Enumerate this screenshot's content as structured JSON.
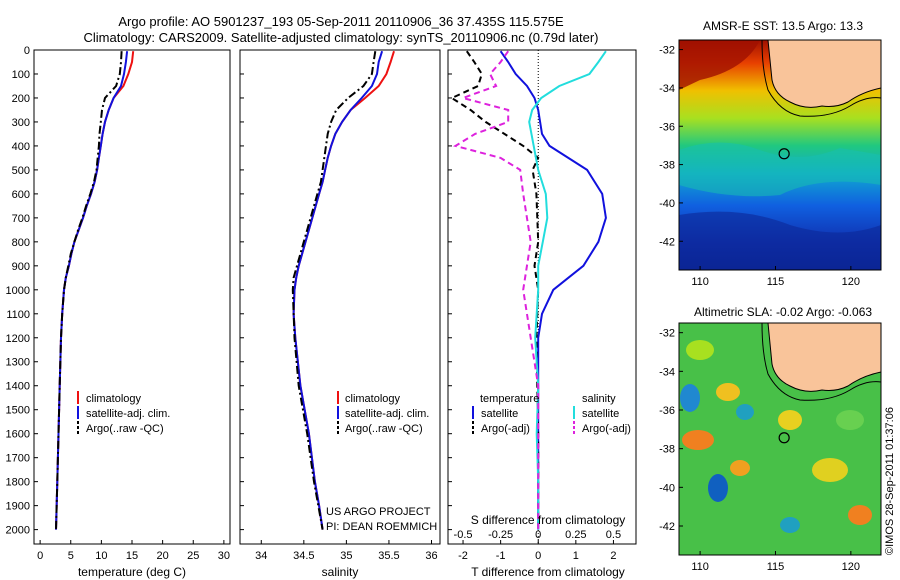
{
  "header": {
    "line1": "Argo profile: AO 5901237_193 05-Sep-2011 20110906_36 37.435S 115.575E",
    "line2": "Climatology: CARS2009. Satellite-adjusted climatology: synTS_20110906.nc (0.79d later)"
  },
  "credit": "©IMOS 28-Sep-2011 01:37:06",
  "project": {
    "line1": "US ARGO PROJECT",
    "line2": "PI: DEAN ROEMMICH"
  },
  "colors": {
    "climatology": "#ee1111",
    "satellite": "#1111dd",
    "argo": "#000000",
    "sat_salinity": "#22dddd",
    "argo_salinity": "#dd22dd",
    "land": "#f9c49a"
  },
  "chart_data": [
    {
      "type": "line",
      "ylim": [
        2060,
        0
      ],
      "yticks": [
        "0",
        "100",
        "200",
        "300",
        "400",
        "500",
        "600",
        "700",
        "800",
        "900",
        "1000",
        "1100",
        "1200",
        "1300",
        "1400",
        "1500",
        "1600",
        "1700",
        "1800",
        "1900",
        "2000"
      ],
      "xlim": [
        -1,
        31
      ],
      "xticks": [
        "0",
        "5",
        "10",
        "15",
        "20",
        "25",
        "30"
      ],
      "xlabel": "temperature (deg C)",
      "legend": [
        "climatology",
        "satellite-adj. clim.",
        "Argo(..raw -QC)"
      ],
      "series": [
        {
          "name": "climatology",
          "style": "solid",
          "color": "#ee1111",
          "x": [
            15.2,
            15.0,
            14.4,
            13.6,
            12.0,
            11.2,
            10.6,
            10.2,
            9.9,
            9.6,
            9.3,
            8.9,
            8.3,
            7.6,
            7.0,
            6.3,
            5.6,
            5.1,
            4.7,
            4.2,
            3.9,
            3.6,
            3.4,
            3.2,
            3.0,
            2.8,
            2.6
          ],
          "y": [
            5,
            50,
            100,
            150,
            200,
            250,
            300,
            350,
            400,
            450,
            500,
            550,
            600,
            650,
            700,
            750,
            800,
            850,
            900,
            950,
            1000,
            1100,
            1200,
            1400,
            1600,
            1800,
            2000
          ]
        },
        {
          "name": "satellite-adj. clim.",
          "style": "solid",
          "color": "#1111dd",
          "x": [
            14.2,
            14.0,
            13.7,
            13.2,
            12.0,
            11.2,
            10.6,
            10.2,
            9.9,
            9.6,
            9.3,
            8.9,
            8.3,
            7.6,
            7.0,
            6.3,
            5.6,
            5.1,
            4.7,
            4.2,
            3.9,
            3.6,
            3.4,
            3.2,
            3.0,
            2.8,
            2.6
          ],
          "y": [
            5,
            50,
            100,
            150,
            200,
            250,
            300,
            350,
            400,
            450,
            500,
            550,
            600,
            650,
            700,
            750,
            800,
            850,
            900,
            950,
            1000,
            1100,
            1200,
            1400,
            1600,
            1800,
            2000
          ]
        },
        {
          "name": "Argo(..raw -QC)",
          "style": "dashdot",
          "color": "#000000",
          "x": [
            13.3,
            13.2,
            13.0,
            12.4,
            10.6,
            10.1,
            9.9,
            9.7,
            9.6,
            9.4,
            9.2,
            8.8,
            8.2,
            7.5,
            6.9,
            6.2,
            5.6,
            5.0,
            4.6,
            4.2,
            3.9,
            3.6,
            3.4,
            3.2,
            3.0,
            2.8,
            2.6
          ],
          "y": [
            5,
            50,
            100,
            150,
            200,
            250,
            300,
            350,
            400,
            450,
            500,
            550,
            600,
            650,
            700,
            750,
            800,
            850,
            900,
            950,
            1000,
            1100,
            1200,
            1400,
            1600,
            1800,
            2000
          ]
        }
      ]
    },
    {
      "type": "line",
      "ylim": [
        2060,
        0
      ],
      "xlim": [
        33.75,
        36.1
      ],
      "xticks": [
        "34",
        "34.5",
        "35",
        "35.5",
        "36"
      ],
      "xlabel": "salinity",
      "legend": [
        "climatology",
        "satellite-adj. clim.",
        "Argo(..raw -QC)"
      ],
      "series": [
        {
          "name": "climatology",
          "style": "solid",
          "color": "#ee1111",
          "x": [
            35.56,
            35.52,
            35.47,
            35.38,
            35.22,
            35.05,
            34.95,
            34.87,
            34.82,
            34.78,
            34.75,
            34.72,
            34.68,
            34.64,
            34.6,
            34.56,
            34.52,
            34.48,
            34.44,
            34.41,
            34.39,
            34.38,
            34.4,
            34.46,
            34.56,
            34.63,
            34.68,
            34.72
          ],
          "y": [
            5,
            50,
            100,
            150,
            200,
            250,
            300,
            350,
            400,
            450,
            500,
            550,
            600,
            650,
            700,
            750,
            800,
            850,
            900,
            950,
            1000,
            1100,
            1200,
            1400,
            1600,
            1800,
            1900,
            2000
          ]
        },
        {
          "name": "satellite-adj. clim.",
          "style": "solid",
          "color": "#1111dd",
          "x": [
            35.42,
            35.38,
            35.36,
            35.3,
            35.18,
            35.05,
            34.95,
            34.87,
            34.82,
            34.78,
            34.75,
            34.72,
            34.68,
            34.64,
            34.6,
            34.56,
            34.52,
            34.48,
            34.44,
            34.41,
            34.39,
            34.38,
            34.4,
            34.46,
            34.56,
            34.63,
            34.68,
            34.72
          ],
          "y": [
            5,
            50,
            100,
            150,
            200,
            250,
            300,
            350,
            400,
            450,
            500,
            550,
            600,
            650,
            700,
            750,
            800,
            850,
            900,
            950,
            1000,
            1100,
            1200,
            1400,
            1600,
            1800,
            1900,
            2000
          ]
        },
        {
          "name": "Argo(..raw -QC)",
          "style": "dashdot",
          "color": "#000000",
          "x": [
            35.34,
            35.32,
            35.3,
            35.2,
            35.02,
            34.88,
            34.82,
            34.78,
            34.76,
            34.74,
            34.72,
            34.7,
            34.66,
            34.62,
            34.58,
            34.54,
            34.5,
            34.46,
            34.42,
            34.38,
            34.37,
            34.39,
            34.44,
            34.54,
            34.62,
            34.67,
            34.72
          ],
          "y": [
            5,
            50,
            100,
            150,
            200,
            250,
            300,
            350,
            400,
            450,
            500,
            550,
            600,
            650,
            700,
            750,
            800,
            850,
            900,
            950,
            1000,
            1200,
            1400,
            1600,
            1800,
            1900,
            2000
          ]
        }
      ]
    },
    {
      "type": "line",
      "ylim": [
        2060,
        0
      ],
      "xlim": [
        -2.4,
        2.6
      ],
      "xticks": [
        "-2",
        "-1",
        "0",
        "1",
        "2"
      ],
      "xticks_top": [
        "-0.5",
        "-0.25",
        "0",
        "0.25",
        "0.5"
      ],
      "xlabel": "T difference from climatology",
      "xlabel_top": "S difference from climatology",
      "legend_titles": [
        "temperature",
        "salinity"
      ],
      "legend": [
        "satellite",
        "Argo(-adj)",
        "satellite",
        "Argo(-adj)"
      ],
      "series": [
        {
          "name": "satellite",
          "group": "temperature",
          "style": "solid",
          "color": "#1111dd",
          "x": [
            -1.0,
            -0.8,
            -0.6,
            -0.3,
            -0.1,
            0.0,
            0.05,
            0.1,
            0.3,
            0.8,
            1.3,
            1.7,
            1.8,
            1.6,
            1.2,
            0.8,
            0.4,
            0.1,
            0.0,
            0.0,
            0.0
          ],
          "y": [
            5,
            50,
            100,
            150,
            200,
            250,
            300,
            350,
            400,
            450,
            500,
            600,
            700,
            800,
            900,
            950,
            1000,
            1100,
            1200,
            1600,
            2000
          ]
        },
        {
          "name": "Argo(-adj)",
          "group": "temperature",
          "style": "dashed",
          "color": "#000000",
          "x": [
            -1.9,
            -1.7,
            -1.5,
            -1.6,
            -2.3,
            -1.8,
            -1.4,
            -0.9,
            -0.4,
            0.0,
            -0.15,
            -0.05,
            0.0,
            -0.1,
            0.0,
            -0.05,
            0.0,
            0.0
          ],
          "y": [
            5,
            50,
            100,
            150,
            200,
            250,
            300,
            350,
            400,
            450,
            500,
            600,
            800,
            900,
            1000,
            1200,
            1600,
            2000
          ]
        },
        {
          "name": "satellite",
          "group": "salinity",
          "style": "solid",
          "color": "#22dddd",
          "x": [
            0.45,
            0.4,
            0.34,
            0.14,
            0.02,
            -0.04,
            -0.06,
            -0.03,
            0.0,
            0.05,
            0.06,
            0.03,
            0.0,
            0.0,
            -0.02,
            0.0,
            -0.01,
            0.0,
            0.0
          ],
          "y": [
            5,
            50,
            100,
            150,
            200,
            250,
            300,
            400,
            500,
            600,
            700,
            800,
            900,
            1000,
            1200,
            1400,
            1600,
            1800,
            2000
          ]
        },
        {
          "name": "Argo(-adj)",
          "group": "salinity",
          "style": "dashed",
          "color": "#dd22dd",
          "x": [
            -0.2,
            -0.25,
            -0.32,
            -0.28,
            -0.5,
            -0.2,
            -0.2,
            -0.42,
            -0.55,
            -0.25,
            -0.12,
            -0.1,
            -0.05,
            -0.1,
            0.0,
            0.0
          ],
          "y": [
            5,
            50,
            100,
            150,
            200,
            250,
            300,
            350,
            400,
            450,
            500,
            600,
            800,
            1000,
            1400,
            2000
          ]
        }
      ]
    }
  ],
  "maps": [
    {
      "title": "AMSR-E SST: 13.5 Argo: 13.3",
      "xticks": [
        "110",
        "115",
        "120"
      ],
      "yticks": [
        "-32",
        "-34",
        "-36",
        "-38",
        "-40",
        "-42"
      ],
      "xlim": [
        108.6,
        122.0
      ],
      "ylim": [
        -43.5,
        -31.5
      ],
      "marker": {
        "lon": 115.575,
        "lat": -37.435
      }
    },
    {
      "title": "Altimetric SLA: -0.02 Argo: -0.063",
      "xticks": [
        "110",
        "115",
        "120"
      ],
      "yticks": [
        "-32",
        "-34",
        "-36",
        "-38",
        "-40",
        "-42"
      ],
      "xlim": [
        108.6,
        122.0
      ],
      "ylim": [
        -43.5,
        -31.5
      ],
      "marker": {
        "lon": 115.575,
        "lat": -37.435
      }
    }
  ]
}
